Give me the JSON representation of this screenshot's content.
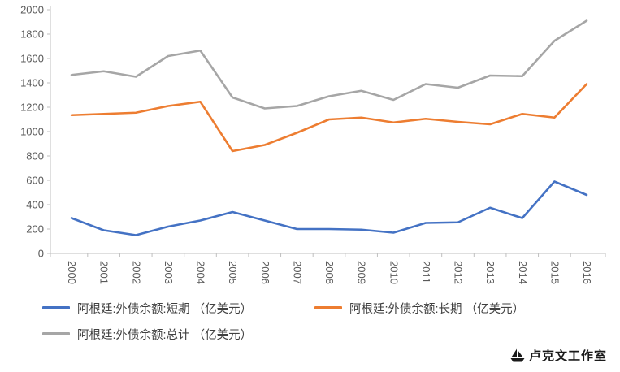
{
  "chart_data": {
    "type": "line",
    "x": [
      "2000",
      "2001",
      "2002",
      "2003",
      "2004",
      "2005",
      "2006",
      "2007",
      "2008",
      "2009",
      "2010",
      "2011",
      "2012",
      "2013",
      "2014",
      "2015",
      "2016"
    ],
    "series": [
      {
        "name": "阿根廷:外债余额:短期 （亿美元）",
        "color": "#4472c4",
        "values": [
          290,
          190,
          150,
          220,
          270,
          340,
          270,
          200,
          200,
          195,
          170,
          250,
          255,
          375,
          290,
          590,
          480
        ]
      },
      {
        "name": "阿根廷:外债余额:长期 （亿美元）",
        "color": "#ed7d31",
        "values": [
          1135,
          1145,
          1155,
          1210,
          1245,
          840,
          890,
          990,
          1100,
          1115,
          1075,
          1105,
          1080,
          1060,
          1145,
          1115,
          1390
        ]
      },
      {
        "name": "阿根廷:外债余额:总计 （亿美元）",
        "color": "#a6a6a6",
        "values": [
          1465,
          1495,
          1450,
          1620,
          1665,
          1280,
          1190,
          1210,
          1290,
          1335,
          1260,
          1390,
          1360,
          1460,
          1455,
          1745,
          1910
        ]
      }
    ],
    "title": "",
    "xlabel": "",
    "ylabel": "",
    "ylim": [
      0,
      2000
    ],
    "ytick_step": 200,
    "grid": false,
    "legend_position": "bottom",
    "axis_color": "#bfbfbf"
  },
  "watermark": {
    "icon": "sailboat-icon",
    "text": "卢克文工作室"
  }
}
